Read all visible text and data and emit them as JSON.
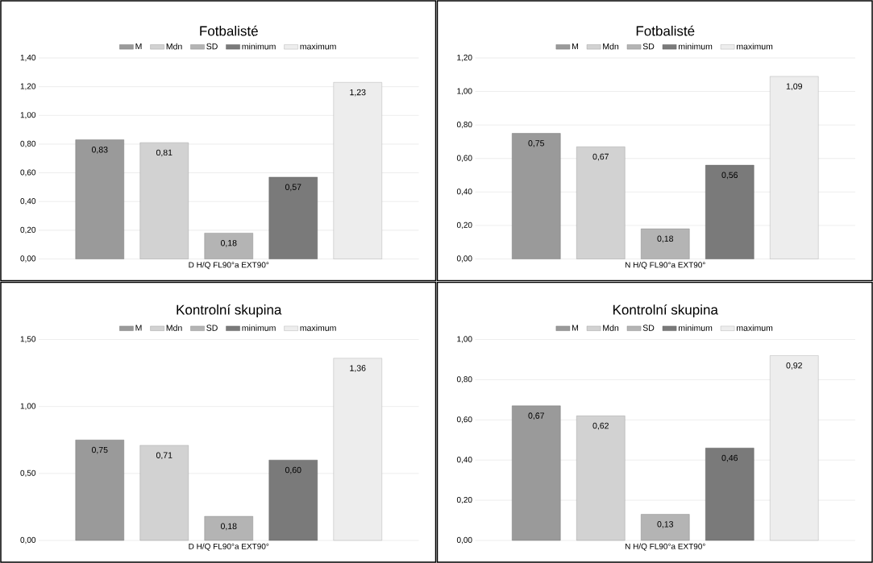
{
  "chart_data": [
    {
      "type": "bar",
      "title": "Fotbalisté",
      "categories": [
        "D H/Q FL90°a EXT90°"
      ],
      "legend": "top",
      "grid": "y",
      "ylim": [
        0,
        1.4
      ],
      "yticks": [
        {
          "value": 0,
          "label": "0,00"
        },
        {
          "value": 0.2,
          "label": "0,20"
        },
        {
          "value": 0.4,
          "label": "0,40"
        },
        {
          "value": 0.6,
          "label": "0,60"
        },
        {
          "value": 0.8,
          "label": "0,80"
        },
        {
          "value": 1.0,
          "label": "1,00"
        },
        {
          "value": 1.2,
          "label": "1,20"
        },
        {
          "value": 1.4,
          "label": "1,40"
        }
      ],
      "series": [
        {
          "name": "M",
          "color": "#9a9a9a",
          "values": [
            0.83
          ],
          "value_labels": [
            "0,83"
          ]
        },
        {
          "name": "Mdn",
          "color": "#d2d2d2",
          "values": [
            0.81
          ],
          "value_labels": [
            "0,81"
          ]
        },
        {
          "name": "SD",
          "color": "#b4b4b4",
          "values": [
            0.18
          ],
          "value_labels": [
            "0,18"
          ]
        },
        {
          "name": "minimum",
          "color": "#7a7a7a",
          "values": [
            0.57
          ],
          "value_labels": [
            "0,57"
          ]
        },
        {
          "name": "maximum",
          "color": "#ededed",
          "values": [
            1.23
          ],
          "value_labels": [
            "1,23"
          ]
        }
      ]
    },
    {
      "type": "bar",
      "title": "Fotbalisté",
      "categories": [
        "N H/Q FL90°a EXT90°"
      ],
      "legend": "top",
      "grid": "y",
      "ylim": [
        0,
        1.2
      ],
      "yticks": [
        {
          "value": 0,
          "label": "0,00"
        },
        {
          "value": 0.2,
          "label": "0,20"
        },
        {
          "value": 0.4,
          "label": "0,40"
        },
        {
          "value": 0.6,
          "label": "0,60"
        },
        {
          "value": 0.8,
          "label": "0,80"
        },
        {
          "value": 1.0,
          "label": "1,00"
        },
        {
          "value": 1.2,
          "label": "1,20"
        }
      ],
      "series": [
        {
          "name": "M",
          "color": "#9a9a9a",
          "values": [
            0.75
          ],
          "value_labels": [
            "0,75"
          ]
        },
        {
          "name": "Mdn",
          "color": "#d2d2d2",
          "values": [
            0.67
          ],
          "value_labels": [
            "0,67"
          ]
        },
        {
          "name": "SD",
          "color": "#b4b4b4",
          "values": [
            0.18
          ],
          "value_labels": [
            "0,18"
          ]
        },
        {
          "name": "minimum",
          "color": "#7a7a7a",
          "values": [
            0.56
          ],
          "value_labels": [
            "0,56"
          ]
        },
        {
          "name": "maximum",
          "color": "#ededed",
          "values": [
            1.09
          ],
          "value_labels": [
            "1,09"
          ]
        }
      ]
    },
    {
      "type": "bar",
      "title": "Kontrolní skupina",
      "categories": [
        "D H/Q FL90°a EXT90°"
      ],
      "legend": "top",
      "grid": "y",
      "ylim": [
        0,
        1.5
      ],
      "yticks": [
        {
          "value": 0,
          "label": "0,00"
        },
        {
          "value": 0.5,
          "label": "0,50"
        },
        {
          "value": 1.0,
          "label": "1,00"
        },
        {
          "value": 1.5,
          "label": "1,50"
        }
      ],
      "series": [
        {
          "name": "M",
          "color": "#9a9a9a",
          "values": [
            0.75
          ],
          "value_labels": [
            "0,75"
          ]
        },
        {
          "name": "Mdn",
          "color": "#d2d2d2",
          "values": [
            0.71
          ],
          "value_labels": [
            "0,71"
          ]
        },
        {
          "name": "SD",
          "color": "#b4b4b4",
          "values": [
            0.18
          ],
          "value_labels": [
            "0,18"
          ]
        },
        {
          "name": "minimum",
          "color": "#7a7a7a",
          "values": [
            0.6
          ],
          "value_labels": [
            "0,60"
          ]
        },
        {
          "name": "maximum",
          "color": "#ededed",
          "values": [
            1.36
          ],
          "value_labels": [
            "1,36"
          ]
        }
      ]
    },
    {
      "type": "bar",
      "title": "Kontrolní skupina",
      "categories": [
        "N H/Q FL90°a EXT90°"
      ],
      "legend": "top",
      "grid": "y",
      "ylim": [
        0,
        1.0
      ],
      "yticks": [
        {
          "value": 0,
          "label": "0,00"
        },
        {
          "value": 0.2,
          "label": "0,20"
        },
        {
          "value": 0.4,
          "label": "0,40"
        },
        {
          "value": 0.6,
          "label": "0,60"
        },
        {
          "value": 0.8,
          "label": "0,80"
        },
        {
          "value": 1.0,
          "label": "1,00"
        }
      ],
      "series": [
        {
          "name": "M",
          "color": "#9a9a9a",
          "values": [
            0.67
          ],
          "value_labels": [
            "0,67"
          ]
        },
        {
          "name": "Mdn",
          "color": "#d2d2d2",
          "values": [
            0.62
          ],
          "value_labels": [
            "0,62"
          ]
        },
        {
          "name": "SD",
          "color": "#b4b4b4",
          "values": [
            0.13
          ],
          "value_labels": [
            "0,13"
          ]
        },
        {
          "name": "minimum",
          "color": "#7a7a7a",
          "values": [
            0.46
          ],
          "value_labels": [
            "0,46"
          ]
        },
        {
          "name": "maximum",
          "color": "#ededed",
          "values": [
            0.92
          ],
          "value_labels": [
            "0,92"
          ]
        }
      ]
    }
  ]
}
